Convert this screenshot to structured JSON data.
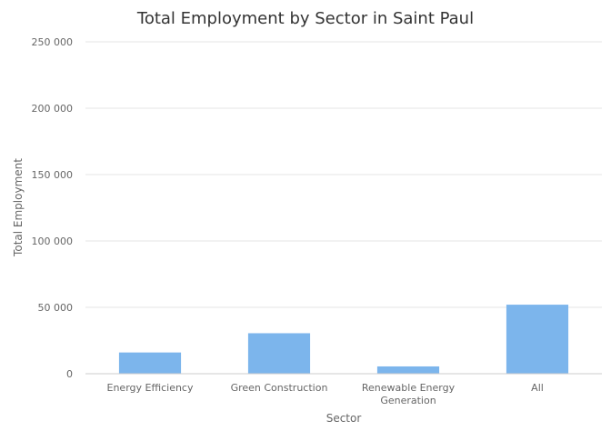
{
  "chart_data": {
    "type": "bar",
    "title": "Total Employment by Sector in Saint Paul",
    "xlabel": "Sector",
    "ylabel": "Total Employment",
    "categories": [
      [
        "Energy Efficiency"
      ],
      [
        "Green Construction"
      ],
      [
        "Renewable Energy",
        "Generation"
      ],
      [
        "All"
      ]
    ],
    "series": [
      {
        "values": [
          16000,
          30500,
          5500,
          52000
        ]
      }
    ],
    "ylim": [
      0,
      250000
    ],
    "yticks": [
      0,
      50000,
      100000,
      150000,
      200000,
      250000
    ],
    "ytick_labels": [
      "0",
      "50 000",
      "100 000",
      "150 000",
      "200 000",
      "250 000"
    ],
    "grid": true,
    "bar_color": "#7cb5ec"
  }
}
